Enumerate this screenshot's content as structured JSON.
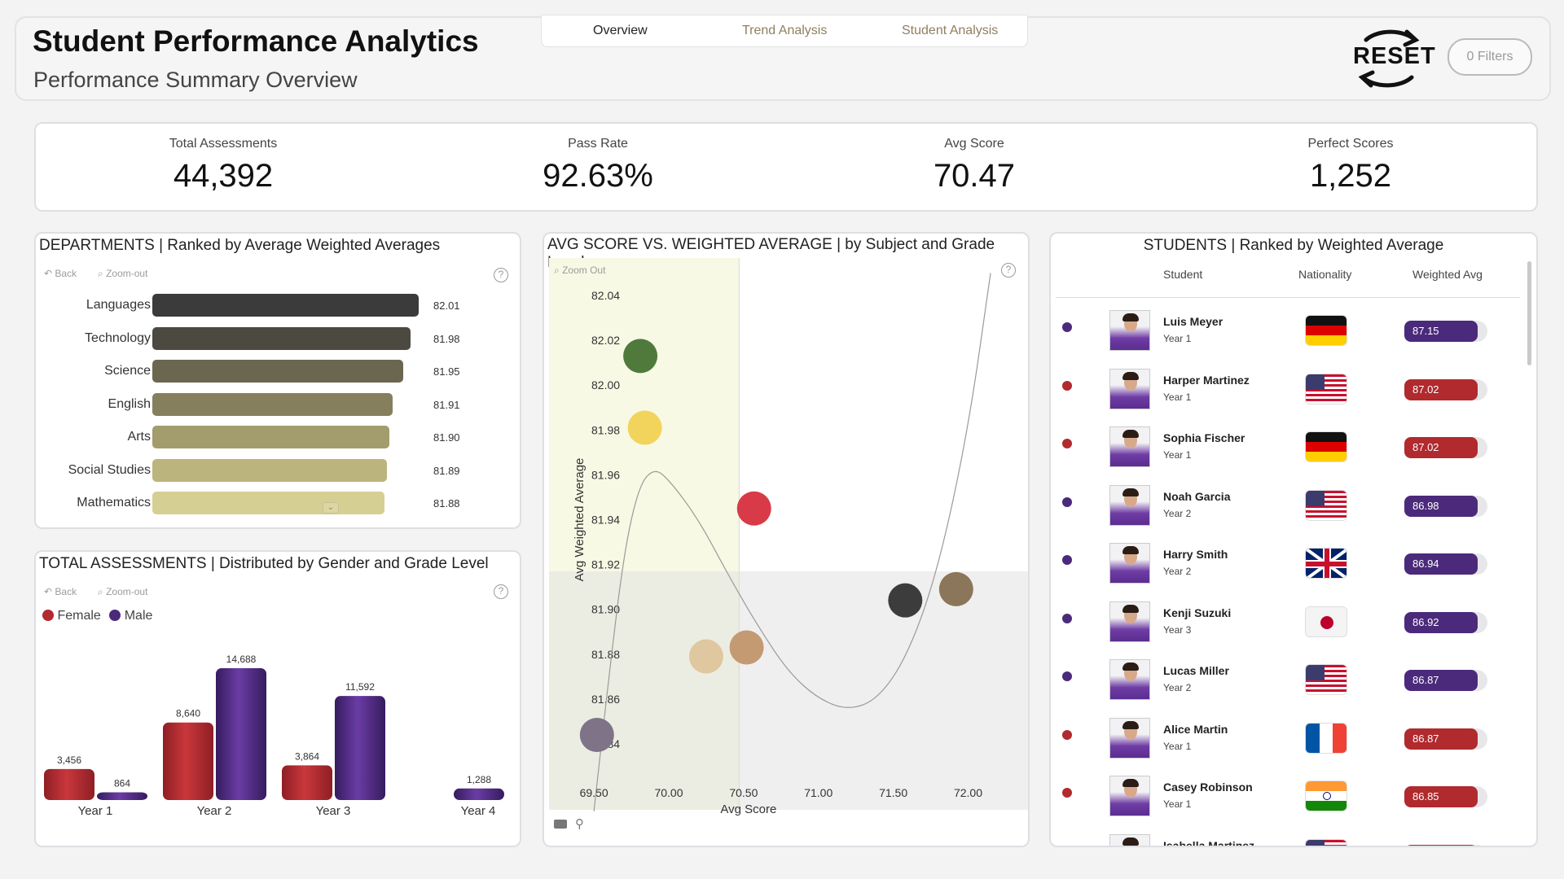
{
  "header": {
    "title": "Student Performance Analytics",
    "subtitle": "Performance Summary Overview",
    "tabs": [
      {
        "label": "Overview"
      },
      {
        "label": "Trend Analysis"
      },
      {
        "label": "Student Analysis"
      }
    ],
    "reset_label": "RESET",
    "filters_label": "0 Filters"
  },
  "kpis": [
    {
      "label": "Total Assessments",
      "value": "44,392"
    },
    {
      "label": "Pass Rate",
      "value": "92.63%"
    },
    {
      "label": "Avg Score",
      "value": "70.47"
    },
    {
      "label": "Perfect Scores",
      "value": "1,252"
    }
  ],
  "departments": {
    "title": "DEPARTMENTS | Ranked by Average Weighted Averages",
    "back_label": "Back",
    "zoom_label": "Zoom-out",
    "help_icon": "?"
  },
  "assessments": {
    "title": "TOTAL ASSESSMENTS | Distributed by Gender and Grade Level",
    "back_label": "Back",
    "zoom_label": "Zoom-out",
    "help_icon": "?",
    "legend": [
      {
        "label": "Female",
        "color": "#b02a2e"
      },
      {
        "label": "Male",
        "color": "#4b2a7b"
      }
    ]
  },
  "scatter": {
    "title": "AVG SCORE VS. WEIGHTED AVERAGE | by Subject and Grade Level",
    "zoom_label": "Zoom Out",
    "help_icon": "?"
  },
  "students": {
    "title": "STUDENTS | Ranked by Weighted Average",
    "columns": [
      "Student",
      "Nationality",
      "Weighted Avg"
    ],
    "rows": [
      {
        "name": "Luis Meyer",
        "year": "Year 1",
        "flag": "germany",
        "avg": "87.15",
        "gender_color": "#4b2a7b"
      },
      {
        "name": "Harper Martinez",
        "year": "Year 1",
        "flag": "usa",
        "avg": "87.02",
        "gender_color": "#b02a2e"
      },
      {
        "name": "Sophia Fischer",
        "year": "Year 1",
        "flag": "germany",
        "avg": "87.02",
        "gender_color": "#b02a2e"
      },
      {
        "name": "Noah Garcia",
        "year": "Year 2",
        "flag": "usa",
        "avg": "86.98",
        "gender_color": "#4b2a7b"
      },
      {
        "name": "Harry Smith",
        "year": "Year 2",
        "flag": "uk",
        "avg": "86.94",
        "gender_color": "#4b2a7b"
      },
      {
        "name": "Kenji Suzuki",
        "year": "Year 3",
        "flag": "japan",
        "avg": "86.92",
        "gender_color": "#4b2a7b"
      },
      {
        "name": "Lucas Miller",
        "year": "Year 2",
        "flag": "usa",
        "avg": "86.87",
        "gender_color": "#4b2a7b"
      },
      {
        "name": "Alice Martin",
        "year": "Year 1",
        "flag": "france",
        "avg": "86.87",
        "gender_color": "#b02a2e"
      },
      {
        "name": "Casey Robinson",
        "year": "Year 1",
        "flag": "india",
        "avg": "86.85",
        "gender_color": "#b02a2e"
      },
      {
        "name": "Isabella Martinez",
        "year": "",
        "flag": "usa",
        "avg": "",
        "gender_color": "#b02a2e"
      }
    ]
  },
  "chart_data": [
    {
      "type": "bar",
      "orientation": "horizontal",
      "title": "DEPARTMENTS | Ranked by Average Weighted Averages",
      "categories": [
        "Languages",
        "Technology",
        "Science",
        "English",
        "Arts",
        "Social Studies",
        "Mathematics"
      ],
      "values": [
        82.01,
        81.98,
        81.95,
        81.91,
        81.9,
        81.89,
        81.88
      ],
      "value_labels": [
        "82.01",
        "81.98",
        "81.95",
        "81.91",
        "81.90",
        "81.89",
        "81.88"
      ],
      "colors": [
        "#3b3b3b",
        "#4c4a40",
        "#6b6650",
        "#857f5d",
        "#a39c6c",
        "#bcb47d",
        "#d6cf94"
      ]
    },
    {
      "type": "bar",
      "title": "TOTAL ASSESSMENTS | Distributed by Gender and Grade Level",
      "categories": [
        "Year 1",
        "Year 2",
        "Year 3",
        "Year 4"
      ],
      "series": [
        {
          "name": "Female",
          "values": [
            3456,
            8640,
            3864,
            0
          ],
          "labels": [
            "3,456",
            "8,640",
            "3,864",
            ""
          ],
          "color": "#b02a2e"
        },
        {
          "name": "Male",
          "values": [
            864,
            14688,
            11592,
            1288
          ],
          "labels": [
            "864",
            "14,688",
            "11,592",
            "1,288"
          ],
          "color": "#4b2a7b"
        }
      ],
      "ylim": [
        0,
        15000
      ]
    },
    {
      "type": "scatter",
      "title": "AVG SCORE VS. WEIGHTED AVERAGE | by Subject and Grade Level",
      "xlabel": "Avg Score",
      "ylabel": "Avg Weighted Average",
      "xlim": [
        69.2,
        72.4
      ],
      "ylim": [
        81.83,
        82.05
      ],
      "x_ticks": [
        "69.50",
        "70.00",
        "70.50",
        "71.00",
        "71.50",
        "72.00"
      ],
      "x_tick_values": [
        69.5,
        70.0,
        70.5,
        71.0,
        71.5,
        72.0
      ],
      "y_ticks": [
        "82.04",
        "82.02",
        "82.00",
        "81.98",
        "81.96",
        "81.94",
        "81.92",
        "81.90",
        "81.88",
        "81.86",
        "81.84"
      ],
      "y_tick_values": [
        82.04,
        82.02,
        82.0,
        81.98,
        81.96,
        81.94,
        81.92,
        81.9,
        81.88,
        81.86,
        81.84
      ],
      "x_mean": 70.47,
      "y_mean": 81.917,
      "points": [
        {
          "x": 69.81,
          "y": 82.013,
          "color": "#4f7a3c"
        },
        {
          "x": 69.84,
          "y": 81.981,
          "color": "#f2d35c"
        },
        {
          "x": 70.57,
          "y": 81.945,
          "color": "#d83b47"
        },
        {
          "x": 71.58,
          "y": 81.904,
          "color": "#3d3c3c"
        },
        {
          "x": 71.92,
          "y": 81.909,
          "color": "#8c7659"
        },
        {
          "x": 70.52,
          "y": 81.883,
          "color": "#c39a72"
        },
        {
          "x": 70.25,
          "y": 81.879,
          "color": "#dfc79f"
        },
        {
          "x": 69.52,
          "y": 81.844,
          "color": "#7e7387"
        }
      ],
      "trend": [
        [
          69.5,
          81.81
        ],
        [
          69.6,
          81.87
        ],
        [
          69.7,
          81.925
        ],
        [
          69.8,
          81.955
        ],
        [
          69.9,
          81.963
        ],
        [
          70.0,
          81.958
        ],
        [
          70.2,
          81.94
        ],
        [
          70.4,
          81.915
        ],
        [
          70.6,
          81.892
        ],
        [
          70.8,
          81.872
        ],
        [
          71.0,
          81.86
        ],
        [
          71.2,
          81.855
        ],
        [
          71.4,
          81.86
        ],
        [
          71.6,
          81.88
        ],
        [
          71.8,
          81.918
        ],
        [
          72.0,
          81.98
        ],
        [
          72.15,
          82.05
        ]
      ]
    }
  ]
}
